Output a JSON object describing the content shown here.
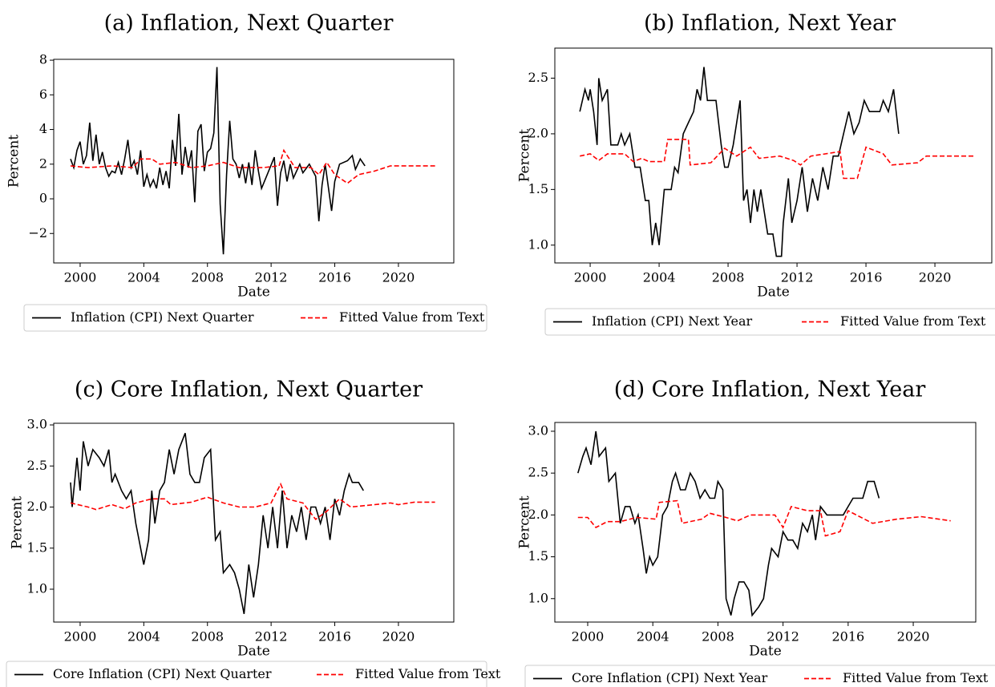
{
  "chart_data": [
    {
      "type": "line",
      "title": "(a) Inflation, Next Quarter",
      "xlabel": "Date",
      "ylabel": "Percent",
      "xlim": [
        1998.34,
        2023.48
      ],
      "ylim": [
        -3.7,
        8.05
      ],
      "xticks": [
        2000,
        2004,
        2008,
        2012,
        2016,
        2020
      ],
      "yticks": [
        {
          "value": -2,
          "label": "−2"
        },
        0,
        2,
        4,
        6,
        8
      ],
      "series": [
        {
          "name": "Inflation (CPI) Next Quarter",
          "color": "#000000",
          "linestyle": "solid",
          "x": [
            1999.4,
            1999.6,
            1999.8,
            2000.0,
            2000.2,
            2000.4,
            2000.6,
            2000.8,
            2001.0,
            2001.2,
            2001.4,
            2001.6,
            2001.8,
            2002.0,
            2002.2,
            2002.4,
            2002.6,
            2002.8,
            2003.0,
            2003.2,
            2003.4,
            2003.6,
            2003.8,
            2004.0,
            2004.2,
            2004.4,
            2004.6,
            2004.8,
            2005.0,
            2005.2,
            2005.4,
            2005.6,
            2005.8,
            2006.0,
            2006.2,
            2006.4,
            2006.6,
            2006.8,
            2007.0,
            2007.2,
            2007.4,
            2007.6,
            2007.8,
            2008.0,
            2008.2,
            2008.4,
            2008.6,
            2008.8,
            2009.0,
            2009.2,
            2009.4,
            2009.6,
            2009.8,
            2010.0,
            2010.2,
            2010.4,
            2010.6,
            2010.8,
            2011.0,
            2011.2,
            2011.4,
            2011.8,
            2012.2,
            2012.4,
            2012.6,
            2012.8,
            2013.0,
            2013.2,
            2013.4,
            2013.8,
            2014.0,
            2014.4,
            2014.8,
            2015.0,
            2015.2,
            2015.4,
            2015.8,
            2016.0,
            2016.3,
            2016.8,
            2017.1,
            2017.3,
            2017.6,
            2017.9
          ],
          "values": [
            2.3,
            1.8,
            2.8,
            3.3,
            2.0,
            2.5,
            4.4,
            2.2,
            3.7,
            2.0,
            2.7,
            1.8,
            1.3,
            1.6,
            1.5,
            2.1,
            1.4,
            2.3,
            3.4,
            1.8,
            2.2,
            1.4,
            2.8,
            0.7,
            1.4,
            0.7,
            1.1,
            0.6,
            1.8,
            0.8,
            1.6,
            0.6,
            3.4,
            1.9,
            4.9,
            1.4,
            3.0,
            1.8,
            2.8,
            -0.2,
            3.9,
            4.3,
            1.6,
            2.7,
            2.9,
            3.8,
            7.6,
            -0.3,
            -3.2,
            1.4,
            4.5,
            2.3,
            2.0,
            1.2,
            2.0,
            0.9,
            2.1,
            0.8,
            2.8,
            1.6,
            0.6,
            1.5,
            2.4,
            -0.4,
            1.5,
            2.2,
            1.0,
            2.0,
            1.2,
            2.0,
            1.5,
            2.0,
            1.3,
            -1.3,
            0.8,
            2.0,
            -0.7,
            1.0,
            2.0,
            2.2,
            2.5,
            1.7,
            2.3,
            1.9
          ]
        },
        {
          "name": "Fitted Value from Text",
          "color": "#ff0000",
          "linestyle": "dashed",
          "x": [
            1999.4,
            2000.5,
            2002.0,
            2003.3,
            2003.8,
            2004.5,
            2005.0,
            2006.0,
            2007.0,
            2008.0,
            2009.0,
            2010.0,
            2011.5,
            2012.5,
            2012.8,
            2013.5,
            2014.5,
            2015.0,
            2015.5,
            2016.0,
            2016.8,
            2017.5,
            2018.5,
            2019.5,
            2022.3
          ],
          "values": [
            1.9,
            1.8,
            1.9,
            1.8,
            2.3,
            2.3,
            2.0,
            2.1,
            1.8,
            1.9,
            2.1,
            1.8,
            1.8,
            1.9,
            2.8,
            1.8,
            1.8,
            1.4,
            2.1,
            1.4,
            0.9,
            1.4,
            1.6,
            1.9,
            1.9
          ]
        }
      ]
    },
    {
      "type": "line",
      "title": "(b) Inflation, Next Year",
      "xlabel": "Date",
      "ylabel": "Percent",
      "xlim": [
        1997.95,
        2023.3
      ],
      "ylim": [
        0.84,
        2.77
      ],
      "xticks": [
        2000,
        2004,
        2008,
        2012,
        2016,
        2020
      ],
      "yticks": [
        {
          "value": 1.0,
          "label": "1.0"
        },
        1.5,
        {
          "value": 2.0,
          "label": "2.0"
        },
        2.5
      ],
      "series": [
        {
          "name": "Inflation (CPI) Next Year",
          "color": "#000000",
          "linestyle": "solid",
          "x": [
            1999.4,
            1999.7,
            1999.9,
            2000.0,
            2000.2,
            2000.4,
            2000.5,
            2000.7,
            2001.0,
            2001.2,
            2001.6,
            2001.8,
            2002.0,
            2002.3,
            2002.6,
            2002.9,
            2003.2,
            2003.4,
            2003.6,
            2003.8,
            2004.0,
            2004.3,
            2004.7,
            2004.9,
            2005.1,
            2005.4,
            2005.7,
            2006.0,
            2006.2,
            2006.4,
            2006.6,
            2006.8,
            2007.1,
            2007.3,
            2007.6,
            2007.8,
            2008.0,
            2008.3,
            2008.5,
            2008.7,
            2008.9,
            2009.1,
            2009.3,
            2009.5,
            2009.7,
            2009.9,
            2010.1,
            2010.3,
            2010.6,
            2010.8,
            2011.1,
            2011.2,
            2011.5,
            2011.7,
            2012.0,
            2012.3,
            2012.6,
            2012.9,
            2013.2,
            2013.5,
            2013.8,
            2014.1,
            2014.4,
            2014.7,
            2015.0,
            2015.3,
            2015.6,
            2015.9,
            2016.2,
            2016.8,
            2017.0,
            2017.3,
            2017.6,
            2017.9
          ],
          "values": [
            2.2,
            2.4,
            2.3,
            2.4,
            2.2,
            1.9,
            2.5,
            2.3,
            2.4,
            1.9,
            1.9,
            2.0,
            1.9,
            2.0,
            1.7,
            1.7,
            1.4,
            1.4,
            1.0,
            1.2,
            1.0,
            1.5,
            1.5,
            1.7,
            1.65,
            2.0,
            2.1,
            2.2,
            2.4,
            2.3,
            2.6,
            2.3,
            2.3,
            2.3,
            1.9,
            1.7,
            1.7,
            1.9,
            2.1,
            2.3,
            1.4,
            1.5,
            1.2,
            1.5,
            1.3,
            1.5,
            1.3,
            1.1,
            1.1,
            0.9,
            0.9,
            1.2,
            1.6,
            1.2,
            1.4,
            1.7,
            1.3,
            1.6,
            1.4,
            1.7,
            1.5,
            1.8,
            1.8,
            2.0,
            2.2,
            2.0,
            2.1,
            2.3,
            2.2,
            2.2,
            2.3,
            2.2,
            2.4,
            2.0
          ]
        },
        {
          "name": "Fitted Value from Text",
          "color": "#ff0000",
          "linestyle": "dashed",
          "x": [
            1999.4,
            2000.0,
            2000.5,
            2001.0,
            2002.0,
            2002.5,
            2003.0,
            2003.4,
            2004.3,
            2004.5,
            2005.7,
            2005.8,
            2007.0,
            2007.8,
            2008.5,
            2009.3,
            2009.8,
            2011.0,
            2011.8,
            2012.2,
            2012.8,
            2014.5,
            2014.7,
            2015.5,
            2016.0,
            2017.0,
            2017.5,
            2019.0,
            2019.5,
            2022.3
          ],
          "values": [
            1.8,
            1.82,
            1.76,
            1.82,
            1.82,
            1.75,
            1.78,
            1.75,
            1.75,
            1.95,
            1.95,
            1.72,
            1.74,
            1.87,
            1.8,
            1.88,
            1.78,
            1.8,
            1.76,
            1.72,
            1.8,
            1.84,
            1.6,
            1.6,
            1.88,
            1.82,
            1.72,
            1.74,
            1.8,
            1.8
          ]
        }
      ]
    },
    {
      "type": "line",
      "title": "(c) Core Inflation, Next Quarter",
      "xlabel": "Date",
      "ylabel": "Percent",
      "xlim": [
        1998.34,
        2023.48
      ],
      "ylim": [
        0.6,
        3.02
      ],
      "xticks": [
        2000,
        2004,
        2008,
        2012,
        2016,
        2020
      ],
      "yticks": [
        {
          "value": 1.0,
          "label": "1.0"
        },
        1.5,
        {
          "value": 2.0,
          "label": "2.0"
        },
        2.5,
        {
          "value": 3.0,
          "label": "3.0"
        }
      ],
      "series": [
        {
          "name": "Core Inflation (CPI) Next Quarter",
          "color": "#000000",
          "linestyle": "solid",
          "x": [
            1999.4,
            1999.5,
            1999.8,
            2000.0,
            2000.2,
            2000.5,
            2000.8,
            2001.2,
            2001.5,
            2001.8,
            2002.0,
            2002.2,
            2002.6,
            2002.9,
            2003.2,
            2003.5,
            2003.7,
            2004.0,
            2004.3,
            2004.5,
            2004.7,
            2005.0,
            2005.3,
            2005.6,
            2005.9,
            2006.2,
            2006.6,
            2006.9,
            2007.2,
            2007.5,
            2007.8,
            2008.2,
            2008.5,
            2008.8,
            2009.0,
            2009.4,
            2009.7,
            2010.0,
            2010.3,
            2010.6,
            2010.9,
            2011.2,
            2011.5,
            2011.8,
            2012.1,
            2012.4,
            2012.7,
            2013.0,
            2013.3,
            2013.6,
            2013.9,
            2014.2,
            2014.5,
            2014.8,
            2015.1,
            2015.4,
            2015.7,
            2016.0,
            2016.3,
            2016.6,
            2016.9,
            2017.1,
            2017.5,
            2017.8
          ],
          "values": [
            2.3,
            2.0,
            2.6,
            2.2,
            2.8,
            2.5,
            2.7,
            2.6,
            2.5,
            2.7,
            2.3,
            2.4,
            2.2,
            2.1,
            2.2,
            1.8,
            1.6,
            1.3,
            1.6,
            2.2,
            1.8,
            2.2,
            2.3,
            2.7,
            2.4,
            2.7,
            2.9,
            2.4,
            2.3,
            2.3,
            2.6,
            2.7,
            1.6,
            1.7,
            1.2,
            1.3,
            1.2,
            1.0,
            0.7,
            1.3,
            0.9,
            1.3,
            1.9,
            1.5,
            2.0,
            1.5,
            2.2,
            1.5,
            1.9,
            1.7,
            2.0,
            1.6,
            2.0,
            2.0,
            1.8,
            2.0,
            1.6,
            2.1,
            1.9,
            2.2,
            2.4,
            2.3,
            2.3,
            2.2
          ]
        },
        {
          "name": "Fitted Value from Text",
          "color": "#ff0000",
          "linestyle": "dashed",
          "x": [
            1999.4,
            2000.5,
            2001.0,
            2002.0,
            2002.8,
            2003.5,
            2004.5,
            2005.3,
            2005.7,
            2007.0,
            2008.0,
            2009.0,
            2010.0,
            2011.0,
            2012.0,
            2012.6,
            2013.0,
            2014.0,
            2014.8,
            2015.5,
            2016.3,
            2017.0,
            2018.5,
            2019.5,
            2020.0,
            2021.0,
            2022.3
          ],
          "values": [
            2.05,
            2.0,
            1.97,
            2.03,
            1.98,
            2.05,
            2.1,
            2.1,
            2.03,
            2.06,
            2.12,
            2.05,
            2.0,
            2.0,
            2.05,
            2.28,
            2.1,
            2.05,
            1.85,
            1.95,
            2.1,
            2.0,
            2.03,
            2.05,
            2.03,
            2.06,
            2.06
          ]
        }
      ]
    },
    {
      "type": "line",
      "title": "(d) Core Inflation, Next Year",
      "xlabel": "Date",
      "ylabel": "Percent",
      "xlim": [
        1997.98,
        2023.84
      ],
      "ylim": [
        0.72,
        3.105
      ],
      "xticks": [
        2000,
        2004,
        2008,
        2012,
        2016,
        2020
      ],
      "yticks": [
        {
          "value": 1.0,
          "label": "1.0"
        },
        1.5,
        {
          "value": 2.0,
          "label": "2.0"
        },
        2.5,
        {
          "value": 3.0,
          "label": "3.0"
        }
      ],
      "series": [
        {
          "name": "Core Inflation (CPI) Next Year",
          "color": "#000000",
          "linestyle": "solid",
          "x": [
            1999.4,
            1999.7,
            1999.9,
            2000.2,
            2000.5,
            2000.7,
            2001.1,
            2001.3,
            2001.7,
            2002.0,
            2002.3,
            2002.6,
            2002.9,
            2003.1,
            2003.4,
            2003.6,
            2003.8,
            2004.0,
            2004.3,
            2004.6,
            2004.9,
            2005.2,
            2005.4,
            2005.7,
            2006.0,
            2006.3,
            2006.6,
            2006.9,
            2007.2,
            2007.5,
            2007.8,
            2008.0,
            2008.3,
            2008.5,
            2008.8,
            2009.0,
            2009.3,
            2009.6,
            2009.9,
            2010.1,
            2010.5,
            2010.8,
            2011.1,
            2011.3,
            2011.7,
            2012.0,
            2012.3,
            2012.6,
            2012.9,
            2013.2,
            2013.5,
            2013.8,
            2014.0,
            2014.3,
            2014.7,
            2015.2,
            2015.7,
            2016.0,
            2016.3,
            2016.9,
            2017.2,
            2017.6,
            2017.9
          ],
          "values": [
            2.5,
            2.7,
            2.8,
            2.6,
            3.0,
            2.7,
            2.8,
            2.4,
            2.5,
            1.9,
            2.1,
            2.1,
            1.9,
            2.0,
            1.6,
            1.3,
            1.5,
            1.4,
            1.5,
            2.0,
            2.1,
            2.4,
            2.5,
            2.3,
            2.3,
            2.5,
            2.4,
            2.2,
            2.3,
            2.2,
            2.2,
            2.4,
            2.3,
            1.0,
            0.8,
            1.0,
            1.2,
            1.2,
            1.1,
            0.8,
            0.9,
            1.0,
            1.4,
            1.6,
            1.5,
            1.8,
            1.7,
            1.7,
            1.6,
            1.9,
            1.8,
            2.0,
            1.7,
            2.1,
            2.0,
            2.0,
            2.0,
            2.1,
            2.2,
            2.2,
            2.4,
            2.4,
            2.2
          ]
        },
        {
          "name": "Fitted Value from Text",
          "color": "#ff0000",
          "linestyle": "dashed",
          "x": [
            1999.4,
            2000.0,
            2000.5,
            2001.2,
            2002.0,
            2003.0,
            2004.2,
            2004.4,
            2005.5,
            2005.8,
            2007.0,
            2007.5,
            2008.5,
            2009.2,
            2010.0,
            2011.5,
            2012.0,
            2012.5,
            2013.5,
            2014.3,
            2014.6,
            2015.5,
            2016.0,
            2017.5,
            2019.0,
            2020.5,
            2022.3
          ],
          "values": [
            1.97,
            1.97,
            1.85,
            1.92,
            1.92,
            1.97,
            1.95,
            2.15,
            2.17,
            1.9,
            1.95,
            2.02,
            1.97,
            1.93,
            2.0,
            2.0,
            1.85,
            2.1,
            2.05,
            2.05,
            1.75,
            1.8,
            2.05,
            1.9,
            1.95,
            1.98,
            1.93
          ]
        }
      ]
    }
  ]
}
